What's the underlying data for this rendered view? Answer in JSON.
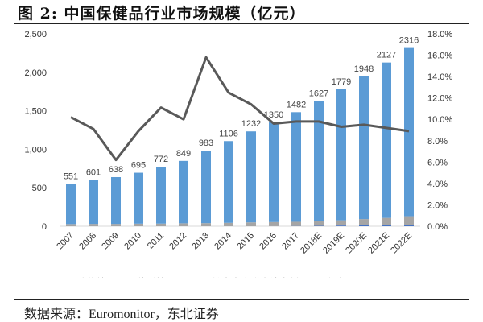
{
  "title": "图  2:  中国保健品行业市场规模（亿元）",
  "source": "数据来源：Euromonitor，东北证券",
  "chart_data": {
    "type": "bar",
    "stacked": true,
    "categories": [
      "2007",
      "2008",
      "2009",
      "2010",
      "2011",
      "2012",
      "2013",
      "2014",
      "2015",
      "2016",
      "2017",
      "2018E",
      "2019E",
      "2020E",
      "2021E",
      "2022E"
    ],
    "totals": [
      551,
      601,
      638,
      695,
      772,
      849,
      983,
      1106,
      1232,
      1350,
      1482,
      1627,
      1779,
      1948,
      2127,
      2316
    ],
    "series": [
      {
        "name": "运动营养",
        "type": "bar",
        "color": "#4472c4",
        "values": [
          0,
          0,
          0,
          0,
          0,
          0,
          0,
          0,
          0,
          1,
          3,
          5,
          9,
          13,
          16,
          20
        ]
      },
      {
        "name": "体重管理",
        "type": "bar",
        "color": "#a5a5a5",
        "values": [
          28,
          30,
          30,
          33,
          34,
          38,
          40,
          44,
          50,
          53,
          55,
          60,
          68,
          80,
          92,
          110
        ]
      },
      {
        "name": "维生素和膳食补充剂",
        "type": "bar",
        "color": "#5b9bd5",
        "values": [
          523,
          571,
          608,
          662,
          738,
          811,
          943,
          1062,
          1182,
          1296,
          1424,
          1562,
          1702,
          1855,
          2019,
          2186
        ]
      },
      {
        "name": "合计-yoy",
        "type": "line",
        "axis": "right",
        "color": "#595959",
        "values": [
          10.2,
          9.1,
          6.2,
          8.9,
          11.1,
          10.0,
          15.8,
          12.5,
          11.4,
          9.6,
          9.8,
          9.8,
          9.3,
          9.5,
          9.2,
          8.9
        ]
      }
    ],
    "left_axis": {
      "ylim": [
        0,
        2500
      ],
      "ticks": [
        "0",
        "500",
        "1,000",
        "1,500",
        "2,000",
        "2,500"
      ]
    },
    "right_axis": {
      "ylim": [
        0,
        18
      ],
      "unit": "%",
      "ticks": [
        "0.0%",
        "2.0%",
        "4.0%",
        "6.0%",
        "8.0%",
        "10.0%",
        "12.0%",
        "14.0%",
        "16.0%",
        "18.0%"
      ]
    },
    "grid": false,
    "legend": "bottom"
  }
}
